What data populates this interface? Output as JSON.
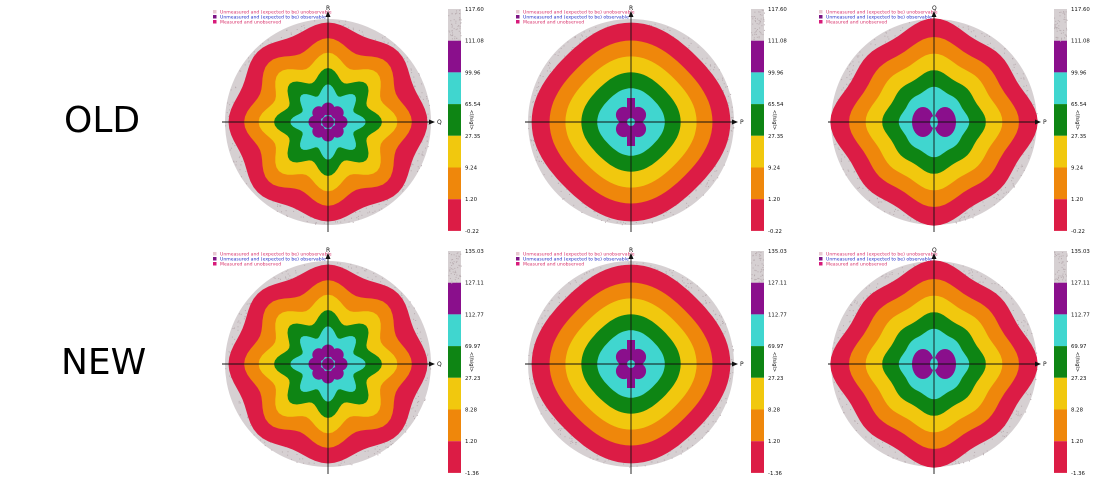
{
  "rows": [
    {
      "label": "OLD",
      "scale": [
        "117.60",
        "111.08",
        "99.96",
        "65.54",
        "27.35",
        "9.24",
        "1.20",
        "-0.22"
      ]
    },
    {
      "label": "NEW",
      "scale": [
        "135.03",
        "127.11",
        "112.77",
        "69.97",
        "27.23",
        "8.28",
        "1.20",
        "-1.36"
      ]
    }
  ],
  "legend": [
    {
      "text": "Unmeasured and (expected to be) unobservable",
      "color": "#e8c8d0",
      "text_color": "#d8306a"
    },
    {
      "text": "Unmeasured and (expected to be) observable",
      "color": "#7d1585",
      "text_color": "#1e2cc8"
    },
    {
      "text": "Measured and unobserved",
      "color": "#d81a7a",
      "text_color": "#d8306a"
    }
  ],
  "colorbar_title": "<I/sigI>",
  "colors": {
    "grey": "#d6d0d2",
    "purple": "#8a0f8c",
    "cyan": "#40d6cf",
    "green": "#0e8514",
    "yellow": "#f1c80e",
    "orange": "#ef870b",
    "red": "#dc1c45",
    "noise": "#b8acb0"
  },
  "chart_data": [
    {
      "type": "heatmap",
      "row": "OLD",
      "axes": {
        "top": "R",
        "right": "Q"
      },
      "ring_profile": "rosette",
      "colorbar_ticks": [
        117.6,
        111.08,
        99.96,
        65.54,
        27.35,
        9.24,
        1.2,
        -0.22
      ]
    },
    {
      "type": "heatmap",
      "row": "OLD",
      "axes": {
        "top": "R",
        "right": "P"
      },
      "ring_profile": "round",
      "colorbar_ticks": [
        117.6,
        111.08,
        99.96,
        65.54,
        27.35,
        9.24,
        1.2,
        -0.22
      ]
    },
    {
      "type": "heatmap",
      "row": "OLD",
      "axes": {
        "top": "Q",
        "right": "P"
      },
      "ring_profile": "bowtie",
      "colorbar_ticks": [
        117.6,
        111.08,
        99.96,
        65.54,
        27.35,
        9.24,
        1.2,
        -0.22
      ]
    },
    {
      "type": "heatmap",
      "row": "NEW",
      "axes": {
        "top": "R",
        "right": "Q"
      },
      "ring_profile": "rosette",
      "colorbar_ticks": [
        135.03,
        127.11,
        112.77,
        69.97,
        27.23,
        8.28,
        1.2,
        -1.36
      ]
    },
    {
      "type": "heatmap",
      "row": "NEW",
      "axes": {
        "top": "R",
        "right": "P"
      },
      "ring_profile": "round",
      "colorbar_ticks": [
        135.03,
        127.11,
        112.77,
        69.97,
        27.23,
        8.28,
        1.2,
        -1.36
      ]
    },
    {
      "type": "heatmap",
      "row": "NEW",
      "axes": {
        "top": "Q",
        "right": "P"
      },
      "ring_profile": "bowtie",
      "colorbar_ticks": [
        135.03,
        127.11,
        112.77,
        69.97,
        27.23,
        8.28,
        1.2,
        -1.36
      ]
    }
  ]
}
